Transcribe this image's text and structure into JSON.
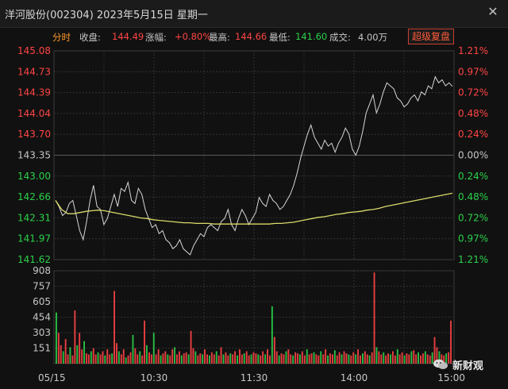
{
  "window": {
    "title": "洋河股份(002304) 2023年5月15日 星期一"
  },
  "info": {
    "mode": "分时",
    "close_label": "收盘:",
    "close_value": "144.49",
    "change_label": "涨幅:",
    "change_value": "+0.80%",
    "high_label": "最高:",
    "high_value": "144.66",
    "low_label": "最低:",
    "low_value": "141.60",
    "volume_label": "成交:",
    "volume_value": "4.00万",
    "fuquan_button": "超级复盘"
  },
  "watermark": "新财观",
  "colors": {
    "price_line": "#d6d6d6",
    "avg_line": "#d9d96a",
    "up": "#ff4545",
    "down": "#2bd14a",
    "neutral": "#c6c6c6"
  },
  "chart_data": [
    {
      "type": "line",
      "title": "",
      "y_ticks_left": [
        "145.08",
        "144.73",
        "144.39",
        "144.04",
        "143.70",
        "143.35",
        "143.00",
        "142.66",
        "142.31",
        "141.97",
        "141.62"
      ],
      "y_ticks_right": [
        "1.21%",
        "0.97%",
        "0.72%",
        "0.48%",
        "0.24%",
        "0.00%",
        "0.24%",
        "0.48%",
        "0.72%",
        "0.97%",
        "1.21%"
      ],
      "ylim": [
        141.62,
        145.08
      ],
      "prev_close": 143.35,
      "x_ticks": [
        "05/15",
        "10:30",
        "11:30",
        "14:00",
        "15:00"
      ],
      "series": [
        {
          "name": "",
          "values": [
            142.6,
            142.5,
            142.35,
            142.4,
            142.55,
            142.6,
            142.35,
            142.1,
            141.95,
            142.25,
            142.6,
            142.85,
            142.5,
            142.45,
            142.2,
            142.3,
            142.5,
            142.7,
            142.5,
            142.8,
            142.75,
            142.9,
            142.6,
            142.55,
            142.8,
            142.7,
            142.45,
            142.3,
            142.15,
            142.2,
            142.05,
            142.1,
            141.95,
            141.9,
            141.8,
            141.85,
            141.95,
            141.8,
            141.75,
            141.7,
            141.85,
            141.95,
            142.05,
            142.0,
            142.15,
            142.2,
            142.15,
            142.1,
            142.25,
            142.3,
            142.45,
            142.2,
            142.1,
            142.3,
            142.45,
            142.35,
            142.2,
            142.3,
            142.4,
            142.65,
            142.55,
            142.5,
            142.7,
            142.6,
            142.55,
            142.45,
            142.5,
            142.6,
            142.7,
            142.85,
            143.05,
            143.3,
            143.5,
            143.7,
            143.85,
            143.65,
            143.55,
            143.45,
            143.6,
            143.5,
            143.55,
            143.4,
            143.55,
            143.65,
            143.8,
            143.7,
            143.45,
            143.35,
            143.5,
            143.75,
            144.05,
            144.2,
            144.35,
            144.05,
            144.2,
            144.4,
            144.55,
            144.5,
            144.45,
            144.3,
            144.25,
            144.15,
            144.2,
            144.3,
            144.35,
            144.25,
            144.4,
            144.35,
            144.5,
            144.45,
            144.65,
            144.55,
            144.6,
            144.5,
            144.55,
            144.49
          ]
        },
        {
          "name": "",
          "values": [
            142.6,
            142.45,
            142.38,
            142.38,
            142.4,
            142.42,
            142.43,
            142.44,
            142.43,
            142.41,
            142.39,
            142.37,
            142.35,
            142.33,
            142.31,
            142.3,
            142.28,
            142.27,
            142.26,
            142.25,
            142.24,
            142.23,
            142.23,
            142.22,
            142.22,
            142.22,
            142.21,
            142.21,
            142.21,
            142.21,
            142.21,
            142.21,
            142.21,
            142.21,
            142.21,
            142.21,
            142.22,
            142.22,
            142.23,
            142.24,
            142.26,
            142.28,
            142.3,
            142.32,
            142.33,
            142.35,
            142.37,
            142.38,
            142.4,
            142.41,
            142.42,
            142.44,
            142.45,
            142.47,
            142.5,
            142.52,
            142.54,
            142.56,
            142.58,
            142.6,
            142.62,
            142.64,
            142.66,
            142.68,
            142.7,
            142.72
          ]
        }
      ]
    },
    {
      "type": "bar",
      "title": "",
      "y_ticks": [
        "908",
        "757",
        "605",
        "454",
        "303",
        "151"
      ],
      "ylim": [
        0,
        908
      ],
      "x_ticks": [
        "05/15",
        "10:30",
        "11:30",
        "14:00",
        "15:00"
      ],
      "series": [
        {
          "name": "",
          "values": [
            500,
            300,
            180,
            120,
            240,
            90,
            160,
            80,
            520,
            180,
            300,
            140,
            220,
            100,
            90,
            120,
            150,
            90,
            110,
            90,
            120,
            80,
            140,
            90,
            100,
            710,
            200,
            120,
            90,
            140,
            60,
            80,
            110,
            280,
            150,
            90,
            120,
            80,
            420,
            180,
            110,
            90,
            300,
            90,
            140,
            80,
            100,
            120,
            90,
            80,
            140,
            160,
            90,
            120,
            80,
            100,
            110,
            90,
            320,
            150,
            120,
            80,
            100,
            90,
            140,
            90,
            80,
            110,
            90,
            120,
            80,
            160,
            90,
            110,
            80,
            100,
            90,
            120,
            80,
            140,
            90,
            100,
            120,
            80,
            90,
            110,
            100,
            90,
            80,
            120,
            90,
            140,
            80,
            560,
            260,
            120,
            80,
            100,
            90,
            120,
            140,
            90,
            80,
            110,
            100,
            90,
            120,
            80,
            140,
            90,
            100,
            110,
            90,
            80,
            120,
            90,
            140,
            80,
            100,
            90,
            130,
            80,
            110,
            90,
            120,
            100,
            90,
            80,
            110,
            90,
            140,
            80,
            100,
            120,
            90,
            80,
            110,
            890,
            160,
            120,
            90,
            110,
            80,
            100,
            90,
            120,
            80,
            140,
            90,
            110,
            80,
            100,
            90,
            120,
            130,
            90,
            110,
            80,
            100,
            120,
            90,
            80,
            110,
            260,
            160,
            120,
            90,
            80,
            100,
            110,
            420
          ]
        }
      ]
    }
  ]
}
